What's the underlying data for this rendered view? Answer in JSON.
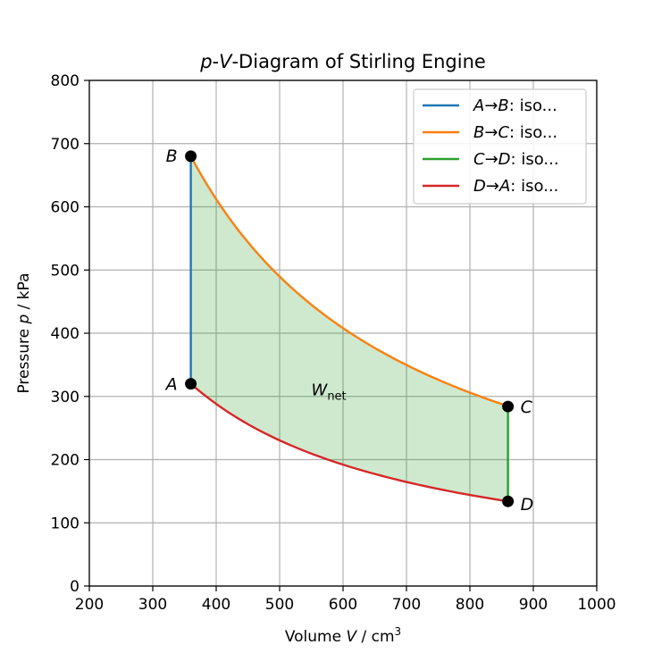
{
  "chart_data": {
    "type": "line",
    "title": {
      "italic1": "p",
      "sep": "-",
      "italic2": "V",
      "rest": "-Diagram of Stirling Engine"
    },
    "xlabel": {
      "pre": "Volume ",
      "italic": "V",
      "post": " / cm",
      "sup": "3"
    },
    "ylabel": {
      "pre": "Pressure ",
      "italic": "p",
      "post": " / kPa"
    },
    "xlim": [
      200,
      1000
    ],
    "ylim": [
      0,
      800
    ],
    "xticks": [
      200,
      300,
      400,
      500,
      600,
      700,
      800,
      900,
      1000
    ],
    "yticks": [
      0,
      100,
      200,
      300,
      400,
      500,
      600,
      700,
      800
    ],
    "grid": true,
    "legend_position": "top-right",
    "points": [
      {
        "name": "A",
        "x": 360,
        "y": 320
      },
      {
        "name": "B",
        "x": 360,
        "y": 680
      },
      {
        "name": "C",
        "x": 860,
        "y": 284
      },
      {
        "name": "D",
        "x": 860,
        "y": 134
      }
    ],
    "series": [
      {
        "from": "A",
        "to": "B",
        "label": "iso...",
        "color": "#1f77b4",
        "kind": "isochoric"
      },
      {
        "from": "B",
        "to": "C",
        "label": "iso...",
        "color": "#ff7f0e",
        "kind": "isothermal"
      },
      {
        "from": "C",
        "to": "D",
        "label": "iso...",
        "color": "#2ca02c",
        "kind": "isochoric"
      },
      {
        "from": "D",
        "to": "A",
        "label": "iso...",
        "color": "#d62728",
        "kind": "isothermal"
      }
    ],
    "fill_color": "#2ca02c",
    "annotation": {
      "text": "W",
      "sub": "net",
      "x": 550,
      "y": 310
    }
  }
}
